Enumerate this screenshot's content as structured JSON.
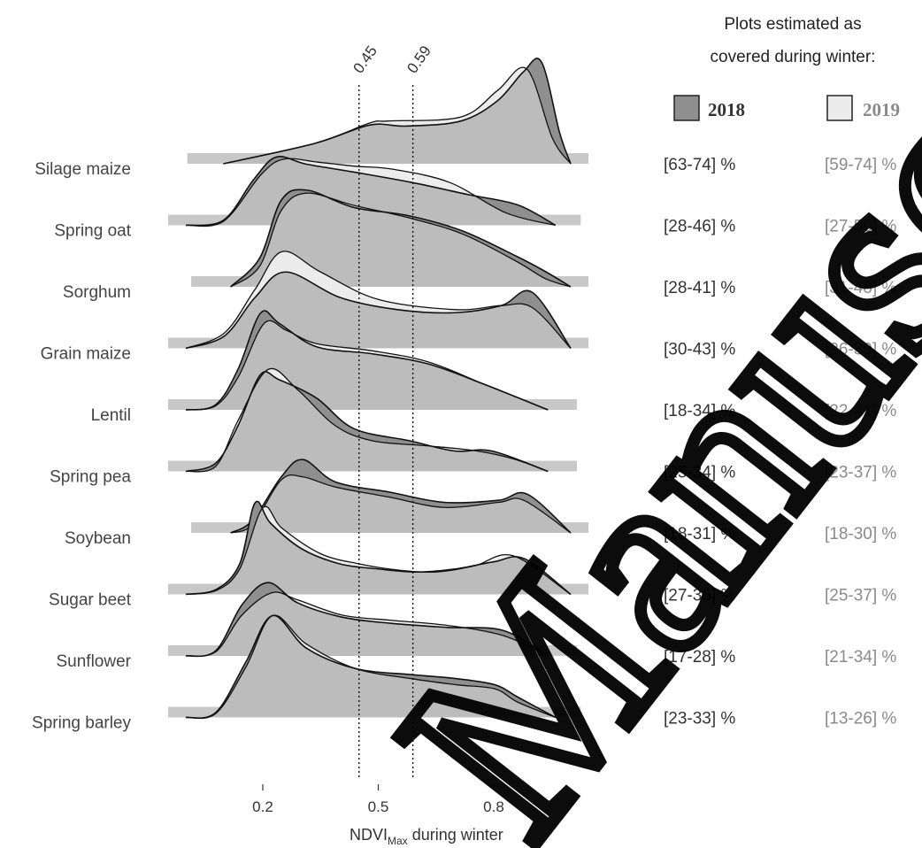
{
  "chart_data": {
    "type": "ridgeline",
    "xlabel_main": "NDVI",
    "xlabel_sub": "Max",
    "xlabel_rest": " during winter",
    "xticks": [
      "0.2",
      "0.5",
      "0.8"
    ],
    "xlim": [
      0.0,
      1.0
    ],
    "thresholds": [
      "0.45",
      "0.59"
    ],
    "threshold_values": [
      0.45,
      0.59
    ],
    "legend": {
      "title_line1": "Plots estimated as",
      "title_line2": "covered during winter:",
      "items": [
        {
          "name": "2018",
          "color": "#8f8f8f"
        },
        {
          "name": "2019",
          "color": "#ececec"
        }
      ]
    },
    "colors": {
      "overlap": "#bcbcbc",
      "y2018": "#8f8f8f",
      "y2019": "#ececec",
      "text2019": "#8a8a8a"
    },
    "watermark": "Manuscript",
    "crops": [
      {
        "name": "Silage maize",
        "range": [
          0.05,
          1.0
        ],
        "pct2018": "[63-74] %",
        "pct2019": "[59-74] %",
        "d2018": [
          [
            0.05,
            0.0
          ],
          [
            0.3,
            0.2
          ],
          [
            0.45,
            0.38
          ],
          [
            0.55,
            0.37
          ],
          [
            0.7,
            0.42
          ],
          [
            0.8,
            0.62
          ],
          [
            0.87,
            0.9
          ],
          [
            0.92,
            1.0
          ],
          [
            0.97,
            0.3
          ],
          [
            1.0,
            0.0
          ]
        ],
        "d2019": [
          [
            0.05,
            0.0
          ],
          [
            0.3,
            0.2
          ],
          [
            0.45,
            0.4
          ],
          [
            0.5,
            0.42
          ],
          [
            0.7,
            0.46
          ],
          [
            0.8,
            0.72
          ],
          [
            0.88,
            0.93
          ],
          [
            0.95,
            0.25
          ],
          [
            1.0,
            0.0
          ]
        ]
      },
      {
        "name": "Spring oat",
        "range": [
          0.0,
          0.98
        ],
        "pct2018": "[28-46] %",
        "pct2019": "[27-50] %",
        "d2018": [
          [
            0.0,
            0.0
          ],
          [
            0.1,
            0.05
          ],
          [
            0.18,
            0.45
          ],
          [
            0.24,
            0.67
          ],
          [
            0.32,
            0.6
          ],
          [
            0.45,
            0.52
          ],
          [
            0.6,
            0.42
          ],
          [
            0.75,
            0.3
          ],
          [
            0.88,
            0.2
          ],
          [
            0.98,
            0.0
          ]
        ],
        "d2019": [
          [
            0.0,
            0.0
          ],
          [
            0.1,
            0.04
          ],
          [
            0.2,
            0.5
          ],
          [
            0.26,
            0.65
          ],
          [
            0.35,
            0.62
          ],
          [
            0.45,
            0.58
          ],
          [
            0.55,
            0.55
          ],
          [
            0.7,
            0.42
          ],
          [
            0.85,
            0.12
          ],
          [
            0.98,
            0.0
          ]
        ]
      },
      {
        "name": "Sorghum",
        "range": [
          0.06,
          1.0
        ],
        "pct2018": "[28-41] %",
        "pct2019": "[31-48] %",
        "d2018": [
          [
            0.06,
            0.0
          ],
          [
            0.14,
            0.28
          ],
          [
            0.2,
            0.85
          ],
          [
            0.27,
            0.95
          ],
          [
            0.4,
            0.78
          ],
          [
            0.55,
            0.7
          ],
          [
            0.7,
            0.55
          ],
          [
            0.85,
            0.3
          ],
          [
            0.93,
            0.15
          ],
          [
            1.0,
            0.0
          ]
        ],
        "d2019": [
          [
            0.06,
            0.0
          ],
          [
            0.14,
            0.2
          ],
          [
            0.2,
            0.75
          ],
          [
            0.27,
            0.92
          ],
          [
            0.4,
            0.8
          ],
          [
            0.55,
            0.68
          ],
          [
            0.7,
            0.52
          ],
          [
            0.85,
            0.25
          ],
          [
            0.93,
            0.08
          ],
          [
            1.0,
            0.0
          ]
        ]
      },
      {
        "name": "Grain maize",
        "range": [
          0.0,
          1.0
        ],
        "pct2018": "[30-43] %",
        "pct2019": "[26-39] %",
        "d2018": [
          [
            0.0,
            0.0
          ],
          [
            0.1,
            0.12
          ],
          [
            0.18,
            0.5
          ],
          [
            0.26,
            0.75
          ],
          [
            0.4,
            0.5
          ],
          [
            0.55,
            0.38
          ],
          [
            0.7,
            0.35
          ],
          [
            0.82,
            0.42
          ],
          [
            0.9,
            0.55
          ],
          [
            1.0,
            0.0
          ]
        ],
        "d2019": [
          [
            0.0,
            0.0
          ],
          [
            0.1,
            0.15
          ],
          [
            0.18,
            0.58
          ],
          [
            0.25,
            0.95
          ],
          [
            0.35,
            0.75
          ],
          [
            0.5,
            0.48
          ],
          [
            0.7,
            0.38
          ],
          [
            0.82,
            0.42
          ],
          [
            0.9,
            0.4
          ],
          [
            1.0,
            0.0
          ]
        ]
      },
      {
        "name": "Lentil",
        "range": [
          0.0,
          0.97
        ],
        "pct2018": "[18-34] %",
        "pct2019": "[22-41] %",
        "d2018": [
          [
            0.0,
            0.0
          ],
          [
            0.08,
            0.05
          ],
          [
            0.14,
            0.4
          ],
          [
            0.2,
            0.95
          ],
          [
            0.25,
            0.85
          ],
          [
            0.35,
            0.62
          ],
          [
            0.5,
            0.55
          ],
          [
            0.65,
            0.45
          ],
          [
            0.8,
            0.25
          ],
          [
            0.97,
            0.0
          ]
        ],
        "d2019": [
          [
            0.0,
            0.0
          ],
          [
            0.08,
            0.04
          ],
          [
            0.14,
            0.32
          ],
          [
            0.21,
            0.85
          ],
          [
            0.27,
            0.78
          ],
          [
            0.35,
            0.65
          ],
          [
            0.5,
            0.58
          ],
          [
            0.65,
            0.47
          ],
          [
            0.8,
            0.25
          ],
          [
            0.97,
            0.0
          ]
        ]
      },
      {
        "name": "Spring pea",
        "range": [
          0.0,
          0.97
        ],
        "pct2018": "[25-34] %",
        "pct2019": "[23-37] %",
        "d2018": [
          [
            0.0,
            0.0
          ],
          [
            0.08,
            0.08
          ],
          [
            0.14,
            0.45
          ],
          [
            0.2,
            0.95
          ],
          [
            0.25,
            0.9
          ],
          [
            0.35,
            0.72
          ],
          [
            0.45,
            0.42
          ],
          [
            0.6,
            0.3
          ],
          [
            0.72,
            0.2
          ],
          [
            0.82,
            0.2
          ],
          [
            0.97,
            0.0
          ]
        ],
        "d2019": [
          [
            0.0,
            0.0
          ],
          [
            0.08,
            0.05
          ],
          [
            0.14,
            0.5
          ],
          [
            0.22,
            1.0
          ],
          [
            0.3,
            0.8
          ],
          [
            0.4,
            0.45
          ],
          [
            0.5,
            0.3
          ],
          [
            0.65,
            0.25
          ],
          [
            0.78,
            0.2
          ],
          [
            0.88,
            0.12
          ],
          [
            0.97,
            0.0
          ]
        ]
      },
      {
        "name": "Soybean",
        "range": [
          0.06,
          1.0
        ],
        "pct2018": "[18-31] %",
        "pct2019": "[18-30] %",
        "d2018": [
          [
            0.06,
            0.0
          ],
          [
            0.12,
            0.12
          ],
          [
            0.2,
            0.55
          ],
          [
            0.26,
            0.72
          ],
          [
            0.35,
            0.5
          ],
          [
            0.5,
            0.4
          ],
          [
            0.65,
            0.3
          ],
          [
            0.8,
            0.32
          ],
          [
            0.88,
            0.38
          ],
          [
            1.0,
            0.0
          ]
        ],
        "d2019": [
          [
            0.06,
            0.0
          ],
          [
            0.12,
            0.08
          ],
          [
            0.2,
            0.52
          ],
          [
            0.26,
            0.55
          ],
          [
            0.35,
            0.45
          ],
          [
            0.5,
            0.35
          ],
          [
            0.65,
            0.25
          ],
          [
            0.8,
            0.3
          ],
          [
            0.87,
            0.32
          ],
          [
            1.0,
            0.0
          ]
        ]
      },
      {
        "name": "Sugar beet",
        "range": [
          0.0,
          1.0
        ],
        "pct2018": "[27-36] %",
        "pct2019": "[25-37] %",
        "d2018": [
          [
            0.0,
            0.0
          ],
          [
            0.08,
            0.05
          ],
          [
            0.14,
            0.3
          ],
          [
            0.18,
            0.9
          ],
          [
            0.22,
            0.7
          ],
          [
            0.3,
            0.45
          ],
          [
            0.4,
            0.3
          ],
          [
            0.5,
            0.25
          ],
          [
            0.6,
            0.22
          ],
          [
            0.7,
            0.25
          ],
          [
            0.8,
            0.32
          ],
          [
            0.88,
            0.35
          ],
          [
            1.0,
            0.0
          ]
        ],
        "d2019": [
          [
            0.0,
            0.0
          ],
          [
            0.08,
            0.04
          ],
          [
            0.14,
            0.25
          ],
          [
            0.2,
            0.85
          ],
          [
            0.25,
            0.65
          ],
          [
            0.35,
            0.4
          ],
          [
            0.45,
            0.3
          ],
          [
            0.55,
            0.24
          ],
          [
            0.65,
            0.22
          ],
          [
            0.75,
            0.28
          ],
          [
            0.85,
            0.38
          ],
          [
            1.0,
            0.0
          ]
        ]
      },
      {
        "name": "Sunflower",
        "range": [
          0.0,
          0.97
        ],
        "pct2018": "[17-28] %",
        "pct2019": "[21-34] %",
        "d2018": [
          [
            0.0,
            0.0
          ],
          [
            0.08,
            0.05
          ],
          [
            0.15,
            0.5
          ],
          [
            0.22,
            0.72
          ],
          [
            0.3,
            0.52
          ],
          [
            0.42,
            0.38
          ],
          [
            0.55,
            0.32
          ],
          [
            0.7,
            0.28
          ],
          [
            0.85,
            0.25
          ],
          [
            0.97,
            0.0
          ]
        ],
        "d2019": [
          [
            0.0,
            0.0
          ],
          [
            0.08,
            0.04
          ],
          [
            0.15,
            0.4
          ],
          [
            0.23,
            0.62
          ],
          [
            0.3,
            0.55
          ],
          [
            0.42,
            0.4
          ],
          [
            0.55,
            0.35
          ],
          [
            0.7,
            0.3
          ],
          [
            0.85,
            0.2
          ],
          [
            0.97,
            0.0
          ]
        ]
      },
      {
        "name": "Spring barley",
        "range": [
          0.0,
          0.98
        ],
        "pct2018": "[23-33] %",
        "pct2019": "[13-26] %",
        "d2018": [
          [
            0.0,
            0.0
          ],
          [
            0.08,
            0.05
          ],
          [
            0.16,
            0.55
          ],
          [
            0.23,
            1.0
          ],
          [
            0.32,
            0.68
          ],
          [
            0.45,
            0.48
          ],
          [
            0.6,
            0.42
          ],
          [
            0.72,
            0.38
          ],
          [
            0.82,
            0.32
          ],
          [
            0.88,
            0.2
          ],
          [
            0.98,
            0.0
          ]
        ],
        "d2019": [
          [
            0.0,
            0.0
          ],
          [
            0.08,
            0.04
          ],
          [
            0.16,
            0.5
          ],
          [
            0.23,
            1.0
          ],
          [
            0.32,
            0.72
          ],
          [
            0.45,
            0.48
          ],
          [
            0.6,
            0.38
          ],
          [
            0.72,
            0.32
          ],
          [
            0.82,
            0.28
          ],
          [
            0.88,
            0.15
          ],
          [
            0.98,
            0.0
          ]
        ]
      }
    ]
  }
}
